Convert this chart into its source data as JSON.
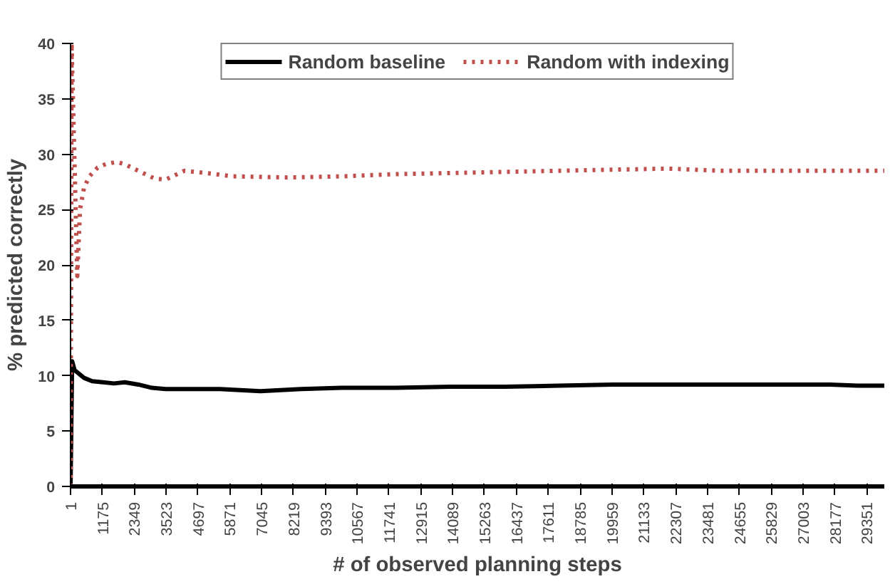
{
  "chart_data": {
    "type": "line",
    "xlabel": "# of observed planning steps",
    "ylabel": "% predicted correctly",
    "xlim": [
      1,
      30000
    ],
    "ylim": [
      0,
      40
    ],
    "xticks": [
      1,
      1175,
      2349,
      3523,
      4697,
      5871,
      7045,
      8219,
      9393,
      10567,
      11741,
      12915,
      14089,
      15263,
      16437,
      17611,
      18785,
      19959,
      21133,
      22307,
      23481,
      24655,
      25829,
      27003,
      28177,
      29351
    ],
    "yticks": [
      0,
      5,
      10,
      15,
      20,
      25,
      30,
      35,
      40
    ],
    "grid": false,
    "legend": "top",
    "marker": "none",
    "series": [
      {
        "name": "Random baseline",
        "color": "#000000",
        "line_style": "solid",
        "x": [
          1,
          60,
          150,
          300,
          500,
          800,
          1200,
          1600,
          2000,
          2500,
          3000,
          3500,
          4500,
          5500,
          7000,
          8500,
          10000,
          12000,
          14000,
          16000,
          18000,
          20000,
          22000,
          24000,
          26000,
          28000,
          29000,
          30000
        ],
        "values": [
          0,
          11.3,
          10.5,
          10.2,
          9.8,
          9.5,
          9.4,
          9.3,
          9.4,
          9.2,
          8.9,
          8.8,
          8.8,
          8.8,
          8.6,
          8.8,
          8.9,
          8.9,
          9.0,
          9.0,
          9.1,
          9.2,
          9.2,
          9.2,
          9.2,
          9.2,
          9.1,
          9.1
        ]
      },
      {
        "name": "Random with indexing",
        "color": "#c0504d",
        "line_style": "dotted",
        "x": [
          1,
          40,
          250,
          350,
          500,
          700,
          1000,
          1300,
          1700,
          2000,
          2500,
          3100,
          3500,
          4200,
          5000,
          6000,
          8000,
          10000,
          12000,
          14000,
          16000,
          18000,
          20000,
          22000,
          24000,
          26000,
          28000,
          30000
        ],
        "values": [
          0,
          40,
          19,
          25,
          27,
          28,
          28.8,
          29.1,
          29.3,
          29.1,
          28.5,
          27.8,
          27.7,
          28.5,
          28.3,
          28.0,
          27.9,
          28.0,
          28.2,
          28.3,
          28.4,
          28.5,
          28.6,
          28.7,
          28.5,
          28.5,
          28.5,
          28.5
        ]
      }
    ]
  }
}
